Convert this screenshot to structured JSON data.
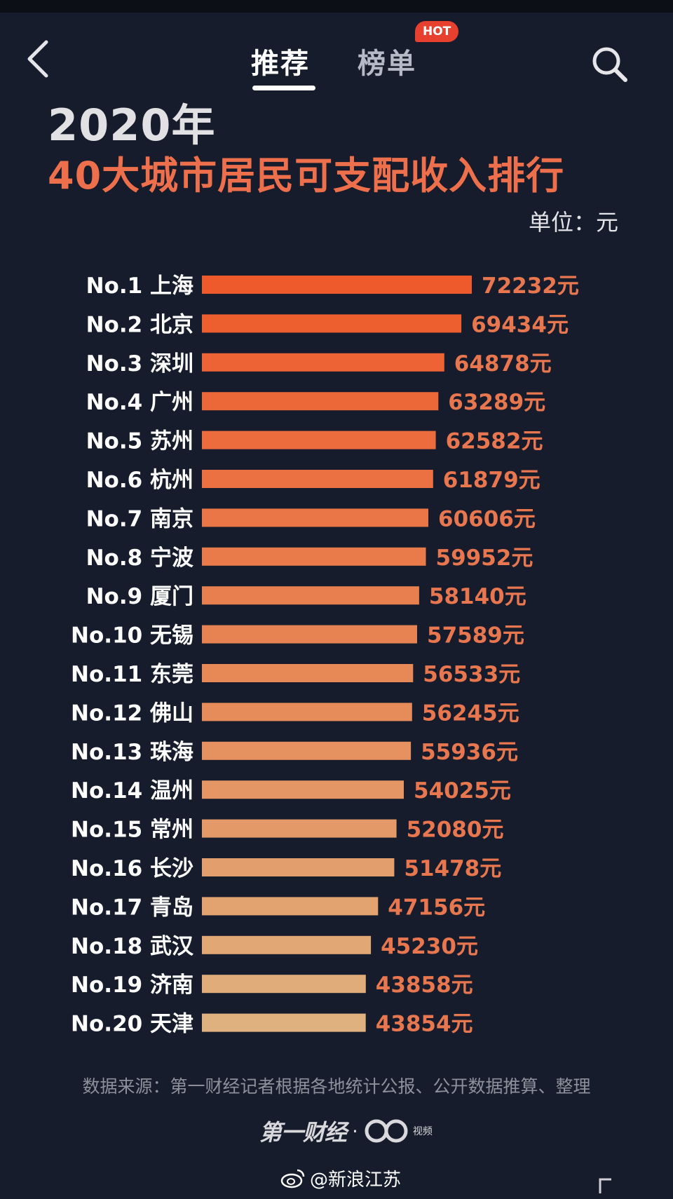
{
  "nav": {
    "tab_recommend": "推荐",
    "tab_ranking": "榜单",
    "hot_badge": "HOT",
    "back_icon": "chevron-left-icon",
    "search_icon": "search-icon"
  },
  "header": {
    "year": "2020年",
    "title": "40大城市居民可支配收入排行",
    "unit": "单位：元"
  },
  "chart_data": {
    "type": "bar",
    "orientation": "horizontal",
    "title": "2020年 40大城市居民可支配收入排行",
    "unit": "元",
    "categories": [
      "No.1 上海",
      "No.2 北京",
      "No.3 深圳",
      "No.4 广州",
      "No.5 苏州",
      "No.6 杭州",
      "No.7 南京",
      "No.8 宁波",
      "No.9 厦门",
      "No.10 无锡",
      "No.11 东莞",
      "No.12 佛山",
      "No.13 珠海",
      "No.14 温州",
      "No.15 常州",
      "No.16 长沙",
      "No.17 青岛",
      "No.18 武汉",
      "No.19 济南",
      "No.20 天津"
    ],
    "values": [
      72232,
      69434,
      64878,
      63289,
      62582,
      61879,
      60606,
      59952,
      58140,
      57589,
      56533,
      56245,
      55936,
      54025,
      52080,
      51478,
      47156,
      45230,
      43858,
      43854
    ],
    "value_labels": [
      "72232元",
      "69434元",
      "64878元",
      "63289元",
      "62582元",
      "61879元",
      "60606元",
      "59952元",
      "58140元",
      "57589元",
      "56533元",
      "56245元",
      "55936元",
      "54025元",
      "52080元",
      "51478元",
      "47156元",
      "45230元",
      "43858元",
      "43854元"
    ],
    "bar_color_top": "#ef5a2c",
    "bar_color_bottom": "#dfb17e",
    "value_color": "#e8764f",
    "label_color": "#ffffff",
    "grid": false,
    "legend": "none"
  },
  "footer": {
    "source": "数据来源：第一财经记者根据各地统计公报、公开数据推算、整理",
    "logo_cbn": "第一财经",
    "logo_dot": "·",
    "logo_video_text": "视频",
    "weibo_icon": "weibo-icon",
    "watermark": "@新浪江苏"
  },
  "colors": {
    "background": "#161c2b",
    "title_accent": "#ed6f4b",
    "hot": "#e8402f"
  }
}
